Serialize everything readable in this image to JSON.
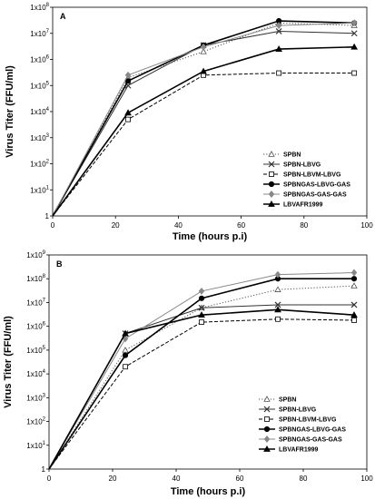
{
  "chart_data": [
    {
      "type": "line",
      "panel_label": "A",
      "xlabel": "Time (hours p.i)",
      "ylabel": "Virus Titer (FFU/ml)",
      "xlim": [
        0,
        100
      ],
      "x_ticks": [
        0,
        20,
        40,
        60,
        80,
        100
      ],
      "y_scale": "log",
      "y_ticks": [
        1,
        10,
        100,
        1000,
        10000,
        100000,
        1000000,
        10000000,
        100000000
      ],
      "y_tick_labels": [
        "1",
        "1x10",
        "1x10",
        "1x10",
        "1x10",
        "1x10",
        "1x10",
        "1x10",
        "1x10"
      ],
      "y_tick_exponents": [
        "",
        "1",
        "2",
        "3",
        "4",
        "5",
        "6",
        "7",
        "8"
      ],
      "legend_position": "bottom-right",
      "x": [
        0,
        24,
        48,
        72,
        96
      ],
      "series": [
        {
          "name": "SPBN",
          "values": [
            1,
            200000,
            2000000,
            25000000,
            20000000
          ],
          "color": "#555555",
          "line": "dotted",
          "marker": "triangle-open"
        },
        {
          "name": "SPBN-LBVG",
          "values": [
            1,
            100000,
            3500000,
            12000000,
            10000000
          ],
          "color": "#333333",
          "line": "solid",
          "marker": "x"
        },
        {
          "name": "SPBN-LBVM-LBVG",
          "values": [
            1,
            5000,
            250000,
            300000,
            300000
          ],
          "color": "#000000",
          "line": "dashed",
          "marker": "square-open"
        },
        {
          "name": "SPBNGAS-LBVG-GAS",
          "values": [
            1,
            150000,
            3500000,
            30000000,
            25000000
          ],
          "color": "#000000",
          "line": "solid-thick",
          "marker": "circle"
        },
        {
          "name": "SPBNGAS-GAS-GAS",
          "values": [
            1,
            250000,
            3000000,
            20000000,
            25000000
          ],
          "color": "#888888",
          "line": "solid",
          "marker": "diamond"
        },
        {
          "name": "LBVAFR1999",
          "values": [
            1,
            9000,
            350000,
            2500000,
            3000000
          ],
          "color": "#000000",
          "line": "solid-thick",
          "marker": "triangle"
        }
      ]
    },
    {
      "type": "line",
      "panel_label": "B",
      "xlabel": "Time (hours p.i)",
      "ylabel": "Virus Titer (FFU/ml)",
      "xlim": [
        0,
        100
      ],
      "x_ticks": [
        0,
        20,
        40,
        60,
        80,
        100
      ],
      "y_scale": "log",
      "y_ticks": [
        1,
        10,
        100,
        1000,
        10000,
        100000,
        1000000,
        10000000,
        100000000,
        1000000000
      ],
      "y_tick_labels": [
        "1",
        "1x10",
        "1x10",
        "1x10",
        "1x10",
        "1x10",
        "1x10",
        "1x10",
        "1x10",
        "1x10"
      ],
      "y_tick_exponents": [
        "",
        "1",
        "2",
        "3",
        "4",
        "5",
        "6",
        "7",
        "8",
        "9"
      ],
      "legend_position": "bottom-right",
      "x": [
        0,
        24,
        48,
        72,
        96
      ],
      "series": [
        {
          "name": "SPBN",
          "values": [
            1,
            100000,
            6000000,
            35000000,
            50000000
          ],
          "color": "#555555",
          "line": "dotted",
          "marker": "triangle-open"
        },
        {
          "name": "SPBN-LBVG",
          "values": [
            1,
            500000,
            6000000,
            8000000,
            8000000
          ],
          "color": "#333333",
          "line": "solid",
          "marker": "x"
        },
        {
          "name": "SPBN-LBVM-LBVG",
          "values": [
            1,
            20000,
            1500000,
            2000000,
            1800000
          ],
          "color": "#000000",
          "line": "dashed",
          "marker": "square-open"
        },
        {
          "name": "SPBNGAS-LBVG-GAS",
          "values": [
            1,
            60000,
            15000000,
            100000000,
            100000000
          ],
          "color": "#000000",
          "line": "solid-thick",
          "marker": "circle"
        },
        {
          "name": "SPBNGAS-GAS-GAS",
          "values": [
            1,
            300000,
            30000000,
            150000000,
            180000000
          ],
          "color": "#888888",
          "line": "solid",
          "marker": "diamond"
        },
        {
          "name": "LBVAFR1999",
          "values": [
            1,
            500000,
            3000000,
            5000000,
            3000000
          ],
          "color": "#000000",
          "line": "solid-thick",
          "marker": "triangle"
        }
      ]
    }
  ]
}
